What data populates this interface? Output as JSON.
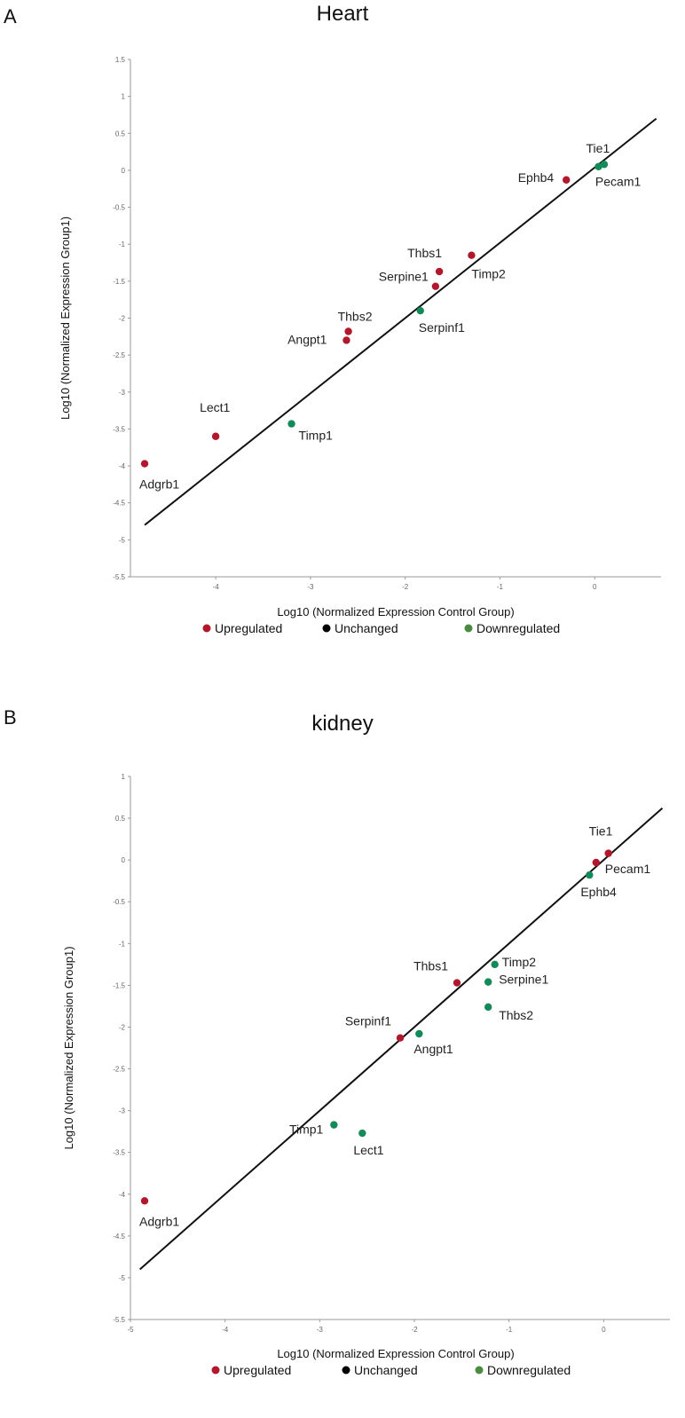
{
  "panels": [
    {
      "letter": "A",
      "title": "Heart"
    },
    {
      "letter": "B",
      "title": "kidney"
    }
  ],
  "colors": {
    "up": "#b2182b",
    "unchanged": "#000000",
    "down": "#138a5a",
    "line": "#111111",
    "axis": "#999999"
  },
  "chart_data": [
    {
      "type": "scatter",
      "title": "Heart",
      "xlabel": "Log10 (Normalized Expression Control Group)",
      "ylabel": "Log10 (Normalized Expression Group1)",
      "xlim": [
        -4.9,
        0.7
      ],
      "ylim": [
        -5.5,
        1.5
      ],
      "xticks": [
        -4,
        -3,
        -2,
        -1,
        0
      ],
      "yticks": [
        1.5,
        1,
        0.5,
        0,
        -0.5,
        -1,
        -1.5,
        -2,
        -2.5,
        -3,
        -3.5,
        -4,
        -4.5,
        -5,
        -5.5
      ],
      "trendline": {
        "x": [
          -4.75,
          0.65
        ],
        "y": [
          -4.8,
          0.7
        ]
      },
      "legend": [
        {
          "name": "Upregulated",
          "color": "#b2182b"
        },
        {
          "name": "Unchanged",
          "color": "#000000"
        },
        {
          "name": "Downregulated",
          "color": "#4a8c3f"
        }
      ],
      "points": [
        {
          "name": "Adgrb1",
          "x": -4.75,
          "y": -3.97,
          "status": "up"
        },
        {
          "name": "Lect1",
          "x": -4.0,
          "y": -3.6,
          "status": "up"
        },
        {
          "name": "Timp1",
          "x": -3.2,
          "y": -3.43,
          "status": "down"
        },
        {
          "name": "Angpt1",
          "x": -2.62,
          "y": -2.3,
          "status": "up"
        },
        {
          "name": "Thbs2",
          "x": -2.6,
          "y": -2.18,
          "status": "up"
        },
        {
          "name": "Serpinf1",
          "x": -1.84,
          "y": -1.9,
          "status": "down"
        },
        {
          "name": "Serpine1",
          "x": -1.68,
          "y": -1.57,
          "status": "up"
        },
        {
          "name": "Thbs1",
          "x": -1.64,
          "y": -1.37,
          "status": "up"
        },
        {
          "name": "Timp2",
          "x": -1.3,
          "y": -1.15,
          "status": "up"
        },
        {
          "name": "Ephb4",
          "x": -0.3,
          "y": -0.13,
          "status": "up"
        },
        {
          "name": "Tie1",
          "x": 0.04,
          "y": 0.05,
          "status": "down"
        },
        {
          "name": "Pecam1",
          "x": 0.1,
          "y": 0.08,
          "status": "down"
        }
      ]
    },
    {
      "type": "scatter",
      "title": "kidney",
      "xlabel": "Log10 (Normalized Expression Control Group)",
      "ylabel": "Log10 (Normalized Expression Group1)",
      "xlim": [
        -5.0,
        0.7
      ],
      "ylim": [
        -5.5,
        1.0
      ],
      "xticks": [
        -5,
        -4,
        -3,
        -2,
        -1,
        0
      ],
      "yticks": [
        1,
        0.5,
        0,
        -0.5,
        -1,
        -1.5,
        -2,
        -2.5,
        -3,
        -3.5,
        -4,
        -4.5,
        -5,
        -5.5
      ],
      "trendline": {
        "x": [
          -4.9,
          0.62
        ],
        "y": [
          -4.9,
          0.62
        ]
      },
      "legend": [
        {
          "name": "Upregulated",
          "color": "#b2182b"
        },
        {
          "name": "Unchanged",
          "color": "#000000"
        },
        {
          "name": "Downregulated",
          "color": "#4a8c3f"
        }
      ],
      "points": [
        {
          "name": "Adgrb1",
          "x": -4.85,
          "y": -4.08,
          "status": "up"
        },
        {
          "name": "Timp1",
          "x": -2.85,
          "y": -3.17,
          "status": "down"
        },
        {
          "name": "Lect1",
          "x": -2.55,
          "y": -3.27,
          "status": "down"
        },
        {
          "name": "Serpinf1",
          "x": -2.15,
          "y": -2.13,
          "status": "up"
        },
        {
          "name": "Angpt1",
          "x": -1.95,
          "y": -2.08,
          "status": "down"
        },
        {
          "name": "Thbs1",
          "x": -1.55,
          "y": -1.47,
          "status": "up"
        },
        {
          "name": "Timp2",
          "x": -1.15,
          "y": -1.25,
          "status": "down"
        },
        {
          "name": "Serpine1",
          "x": -1.22,
          "y": -1.46,
          "status": "down"
        },
        {
          "name": "Thbs2",
          "x": -1.22,
          "y": -1.76,
          "status": "down"
        },
        {
          "name": "Tie1",
          "x": 0.05,
          "y": 0.08,
          "status": "up"
        },
        {
          "name": "Pecam1",
          "x": -0.08,
          "y": -0.03,
          "status": "up"
        },
        {
          "name": "Ephb4",
          "x": -0.15,
          "y": -0.18,
          "status": "down"
        }
      ]
    }
  ]
}
